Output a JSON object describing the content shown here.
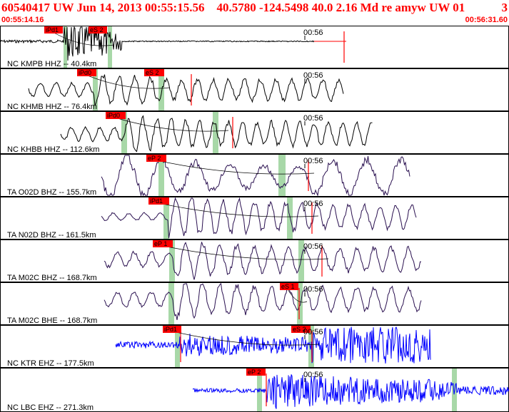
{
  "header": {
    "title": "60540417 UW Jun 14, 2013 00:55:15.56    40.5780 -124.5498 40.0 2.16 Md re amyw UW 01",
    "page": "3",
    "start_time": "00:55:14.16",
    "end_time": "00:56:31.60"
  },
  "colors": {
    "header_text": "#ff0000",
    "pick_flag": "#ff0000",
    "pick_window": "#a8d8a8",
    "trace_nc": "#000000",
    "trace_ta": "#2a1050",
    "trace_blue": "#0000ff"
  },
  "traces": [
    {
      "label": "NC KMPB HHZ -- 40.4km",
      "minute_tick": "00:56",
      "picks": [
        "iPd1",
        "eS 2"
      ]
    },
    {
      "label": "NC KHMB HHZ -- 76.4km",
      "minute_tick": "00:56",
      "picks": [
        "iPd0",
        "eS 2"
      ]
    },
    {
      "label": "NC KHBB HHZ -- 112.6km",
      "minute_tick": "00:56",
      "picks": [
        "iPd0"
      ]
    },
    {
      "label": "TA O02D BHZ -- 155.7km",
      "minute_tick": "00:56",
      "picks": [
        "eP 2"
      ]
    },
    {
      "label": "TA N02D BHZ -- 161.5km",
      "minute_tick": "00:56",
      "picks": [
        "iPd1"
      ]
    },
    {
      "label": "TA M02C BHZ -- 168.7km",
      "minute_tick": "00:56",
      "picks": [
        "eP 1"
      ]
    },
    {
      "label": "TA M02C BHE -- 168.7km",
      "minute_tick": "00:56",
      "picks": [
        "eS 1"
      ]
    },
    {
      "label": "NC KTR EHZ -- 177.5km",
      "minute_tick": "00:56",
      "picks": [
        "iPd1",
        "eS 2"
      ]
    },
    {
      "label": "NC LBC EHZ -- 271.3km",
      "minute_tick": "00:56",
      "picks": [
        "eP 2"
      ]
    }
  ]
}
